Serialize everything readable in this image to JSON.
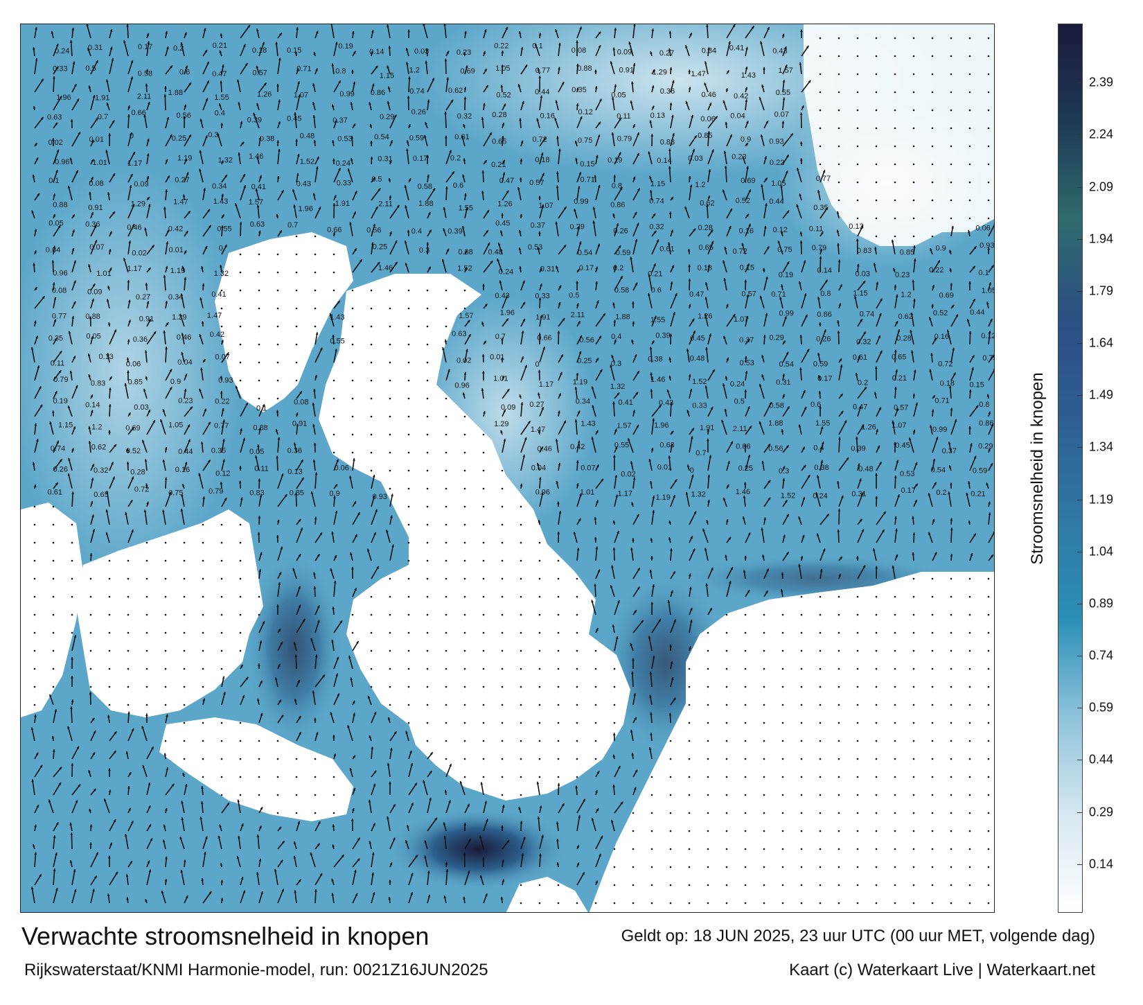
{
  "title": "Verwachte stroomsnelheid in knopen",
  "valid_time": "Geldt op: 18 JUN 2025, 23 uur UTC (00 uur MET, volgende dag)",
  "source": "Rijkswaterstaat/KNMI Harmonie-model, run: 0021Z16JUN2025",
  "credit": "Kaart (c) Waterkaart Live | Waterkaart.net",
  "legend": {
    "title": "Stroomsnelheid in knopen",
    "ticks": [
      "2.39",
      "2.24",
      "2.09",
      "1.94",
      "1.79",
      "1.64",
      "1.49",
      "1.34",
      "1.19",
      "1.04",
      "0.89",
      "0.74",
      "0.59",
      "0.44",
      "0.29",
      "0.14"
    ],
    "range": [
      0,
      2.56
    ],
    "colors": [
      "#ffffff",
      "#d6e8f1",
      "#8ec3da",
      "#2b8fb7",
      "#2f79a5",
      "#2e5d93",
      "#2c4f83",
      "#2f6b6e",
      "#1d3a55",
      "#1a1a3a"
    ]
  },
  "map": {
    "sea_color": "#5ba6c9",
    "land_color": "#ffffff",
    "value_labels": [
      {
        "v": "0.24"
      },
      {
        "v": "0.31"
      },
      {
        "v": "0.17"
      },
      {
        "v": "0.2"
      },
      {
        "v": "0.21"
      },
      {
        "v": "0.18"
      },
      {
        "v": "0.15"
      },
      {
        "v": "0.19"
      },
      {
        "v": "0.14"
      },
      {
        "v": "0.03"
      },
      {
        "v": "0.23"
      },
      {
        "v": "0.22"
      },
      {
        "v": "0.1"
      },
      {
        "v": "0.08"
      },
      {
        "v": "0.09"
      },
      {
        "v": "0.27"
      },
      {
        "v": "0.34"
      },
      {
        "v": "0.41"
      },
      {
        "v": "0.43"
      },
      {
        "v": "0.33"
      },
      {
        "v": "0.5"
      },
      {
        "v": "0.58"
      },
      {
        "v": "0.6"
      },
      {
        "v": "0.47"
      },
      {
        "v": "0.57"
      },
      {
        "v": "0.71"
      },
      {
        "v": "0.8"
      },
      {
        "v": "1.15"
      },
      {
        "v": "1.2"
      },
      {
        "v": "0.69"
      },
      {
        "v": "1.05"
      },
      {
        "v": "0.77"
      },
      {
        "v": "0.88"
      },
      {
        "v": "0.91"
      },
      {
        "v": "1.29"
      },
      {
        "v": "1.47"
      },
      {
        "v": "1.43"
      },
      {
        "v": "1.57"
      },
      {
        "v": "1.96"
      },
      {
        "v": "1.91"
      },
      {
        "v": "2.11"
      },
      {
        "v": "1.88"
      },
      {
        "v": "1.55"
      },
      {
        "v": "1.26"
      },
      {
        "v": "1.07"
      },
      {
        "v": "0.99"
      },
      {
        "v": "0.86"
      },
      {
        "v": "0.74"
      },
      {
        "v": "0.62"
      },
      {
        "v": "0.52"
      },
      {
        "v": "0.44"
      },
      {
        "v": "0.35"
      },
      {
        "v": "0.05"
      },
      {
        "v": "0.36"
      },
      {
        "v": "0.46"
      },
      {
        "v": "0.42"
      },
      {
        "v": "0.55"
      },
      {
        "v": "0.63"
      },
      {
        "v": "0.7"
      },
      {
        "v": "0.66"
      },
      {
        "v": "0.56"
      },
      {
        "v": "0.4"
      },
      {
        "v": "0.39"
      },
      {
        "v": "0.45"
      },
      {
        "v": "0.37"
      },
      {
        "v": "0.29"
      },
      {
        "v": "0.26"
      },
      {
        "v": "0.32"
      },
      {
        "v": "0.28"
      },
      {
        "v": "0.16"
      },
      {
        "v": "0.12"
      },
      {
        "v": "0.11"
      },
      {
        "v": "0.13"
      },
      {
        "v": "0.06"
      },
      {
        "v": "0.04"
      },
      {
        "v": "0.07"
      },
      {
        "v": "0.02"
      },
      {
        "v": "0.01"
      },
      {
        "v": "0"
      },
      {
        "v": "0.25"
      },
      {
        "v": "0.3"
      },
      {
        "v": "0.38"
      },
      {
        "v": "0.48"
      },
      {
        "v": "0.53"
      },
      {
        "v": "0.54"
      },
      {
        "v": "0.59"
      },
      {
        "v": "0.61"
      },
      {
        "v": "0.65"
      },
      {
        "v": "0.72"
      },
      {
        "v": "0.75"
      },
      {
        "v": "0.79"
      },
      {
        "v": "0.83"
      },
      {
        "v": "0.85"
      },
      {
        "v": "0.9"
      },
      {
        "v": "0.93"
      },
      {
        "v": "0.96"
      },
      {
        "v": "1.01"
      },
      {
        "v": "1.17"
      },
      {
        "v": "1.19"
      },
      {
        "v": "1.32"
      },
      {
        "v": "1.46"
      },
      {
        "v": "1.52"
      }
    ]
  }
}
